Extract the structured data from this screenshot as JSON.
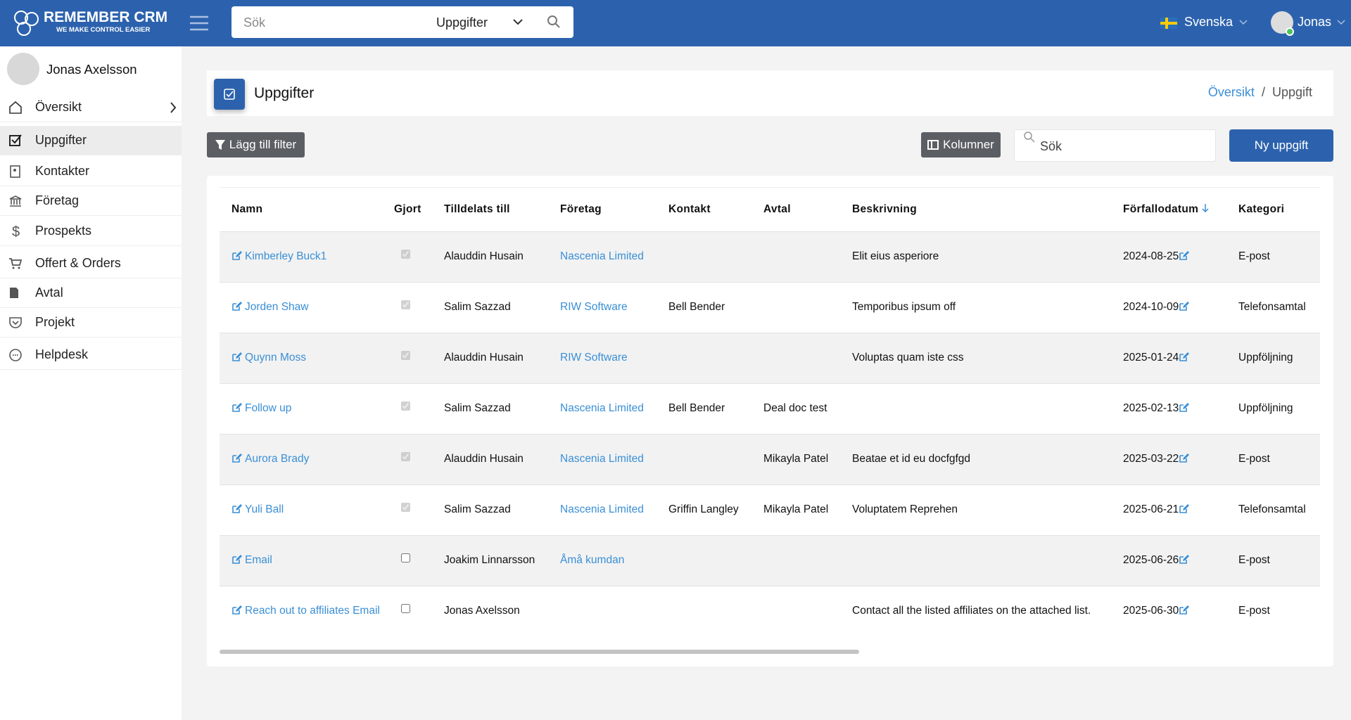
{
  "header": {
    "brand": "REMEMBER CRM",
    "tagline": "WE MAKE CONTROL EASIER",
    "search_placeholder": "Sök",
    "search_scope": "Uppgifter",
    "language": "Svenska",
    "user": "Jonas"
  },
  "sidebar": {
    "user": "Jonas Axelsson",
    "menu": [
      "Översikt",
      "Uppgifter",
      "Kontakter",
      "Företag",
      "Prospekts",
      "Offert & Orders",
      "Avtal",
      "Projekt",
      "Helpdesk"
    ]
  },
  "page": {
    "title": "Uppgifter",
    "breadcrumb": [
      "Översikt",
      "Uppgift"
    ]
  },
  "toolbar": {
    "filter": "Lägg till filter",
    "columns": "Kolumner",
    "search_placeholder": "Sök",
    "new": "Ny uppgift"
  },
  "table": {
    "columns": [
      "Namn",
      "Gjort",
      "Tilldelats till",
      "Företag",
      "Kontakt",
      "Avtal",
      "Beskrivning",
      "Förfallodatum",
      "Kategori"
    ],
    "rows": [
      {
        "name": "Kimberley Buck1",
        "done": true,
        "assigned": "Alauddin Husain",
        "company": "Nascenia Limited",
        "description": "Elit eius asperiore",
        "due": "2024-08-25",
        "category": "E-post"
      },
      {
        "name": "Jorden Shaw",
        "done": true,
        "assigned": "Salim Sazzad",
        "company": "RIW Software",
        "contact": "Bell Bender",
        "description": "Temporibus ipsum off",
        "due": "2024-10-09",
        "category": "Telefonsamtal"
      },
      {
        "name": "Quynn Moss",
        "done": true,
        "assigned": "Alauddin Husain",
        "company": "RIW Software",
        "description": "Voluptas quam iste css",
        "due": "2025-01-24",
        "category": "Uppföljning"
      },
      {
        "name": "Follow up",
        "done": true,
        "assigned": "Salim Sazzad",
        "company": "Nascenia Limited",
        "contact": "Bell Bender",
        "deal": "Deal doc test",
        "due": "2025-02-13",
        "category": "Uppföljning"
      },
      {
        "name": "Aurora Brady",
        "done": true,
        "assigned": "Alauddin Husain",
        "company": "Nascenia Limited",
        "deal": "Mikayla Patel",
        "description": "Beatae et id eu docfgfgd",
        "due": "2025-03-22",
        "category": "E-post"
      },
      {
        "name": "Yuli Ball",
        "done": true,
        "assigned": "Salim Sazzad",
        "company": "Nascenia Limited",
        "contact": "Griffin Langley",
        "deal": "Mikayla Patel",
        "description": "Voluptatem Reprehen",
        "due": "2025-06-21",
        "category": "Telefonsamtal"
      },
      {
        "name": "Email",
        "done": false,
        "assigned": "Joakim Linnarsson",
        "company": "Åmå kumdan",
        "due": "2025-06-26",
        "category": "E-post"
      },
      {
        "name": "Reach out to affiliates Email",
        "done": false,
        "assigned": "Jonas Axelsson",
        "description": "Contact all the listed affiliates on the attached list.",
        "due": "2025-06-30",
        "category": "E-post"
      }
    ]
  }
}
